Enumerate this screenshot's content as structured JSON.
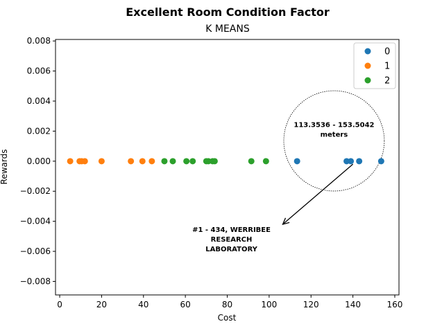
{
  "chart_data": {
    "type": "scatter",
    "title": "Excellent Room Condition Factor",
    "subtitle": "K MEANS",
    "xlabel": "Cost",
    "ylabel": "Rewards",
    "xlim": [
      -2,
      162
    ],
    "ylim": [
      -0.0089,
      0.0081
    ],
    "xticks": [
      0,
      20,
      40,
      60,
      80,
      100,
      120,
      140,
      160
    ],
    "yticks": [
      -0.008,
      -0.006,
      -0.004,
      -0.002,
      0.0,
      0.002,
      0.004,
      0.006,
      0.008
    ],
    "xtick_labels": [
      "0",
      "20",
      "40",
      "60",
      "80",
      "100",
      "120",
      "140",
      "160"
    ],
    "ytick_labels": [
      "−0.008",
      "−0.006",
      "−0.004",
      "−0.002",
      "0.000",
      "0.002",
      "0.004",
      "0.006",
      "0.008"
    ],
    "grid": false,
    "legend_position": "top-right",
    "series": [
      {
        "name": "0",
        "color": "#1f77b4",
        "x": [
          113.35,
          137.0,
          139.0,
          143.0,
          153.5
        ],
        "y": [
          0,
          0,
          0,
          0,
          0
        ]
      },
      {
        "name": "1",
        "color": "#ff7f0e",
        "x": [
          5.0,
          9.5,
          10.5,
          12.0,
          20.0,
          34.0,
          39.5,
          44.0
        ],
        "y": [
          0,
          0,
          0,
          0,
          0,
          0,
          0,
          0
        ]
      },
      {
        "name": "2",
        "color": "#2ca02c",
        "x": [
          50.0,
          54.0,
          60.5,
          63.5,
          70.0,
          71.0,
          73.0,
          74.0,
          91.5,
          98.5
        ],
        "y": [
          0,
          0,
          0,
          0,
          0,
          0,
          0,
          0,
          0,
          0
        ]
      }
    ],
    "annotations": {
      "circle_label": [
        "113.3536 - 153.5042",
        "meters"
      ],
      "circle_center": [
        131,
        0.00135
      ],
      "circle_radius_x": 24,
      "arrow_start": [
        140,
        -0.0002
      ],
      "arrow_end": [
        106.5,
        -0.0042
      ],
      "arrow_label": [
        "#1 - 434, WERRIBEE",
        "RESEARCH",
        "LABORATORY"
      ],
      "arrow_label_anchor": [
        82,
        -0.0047
      ]
    }
  }
}
